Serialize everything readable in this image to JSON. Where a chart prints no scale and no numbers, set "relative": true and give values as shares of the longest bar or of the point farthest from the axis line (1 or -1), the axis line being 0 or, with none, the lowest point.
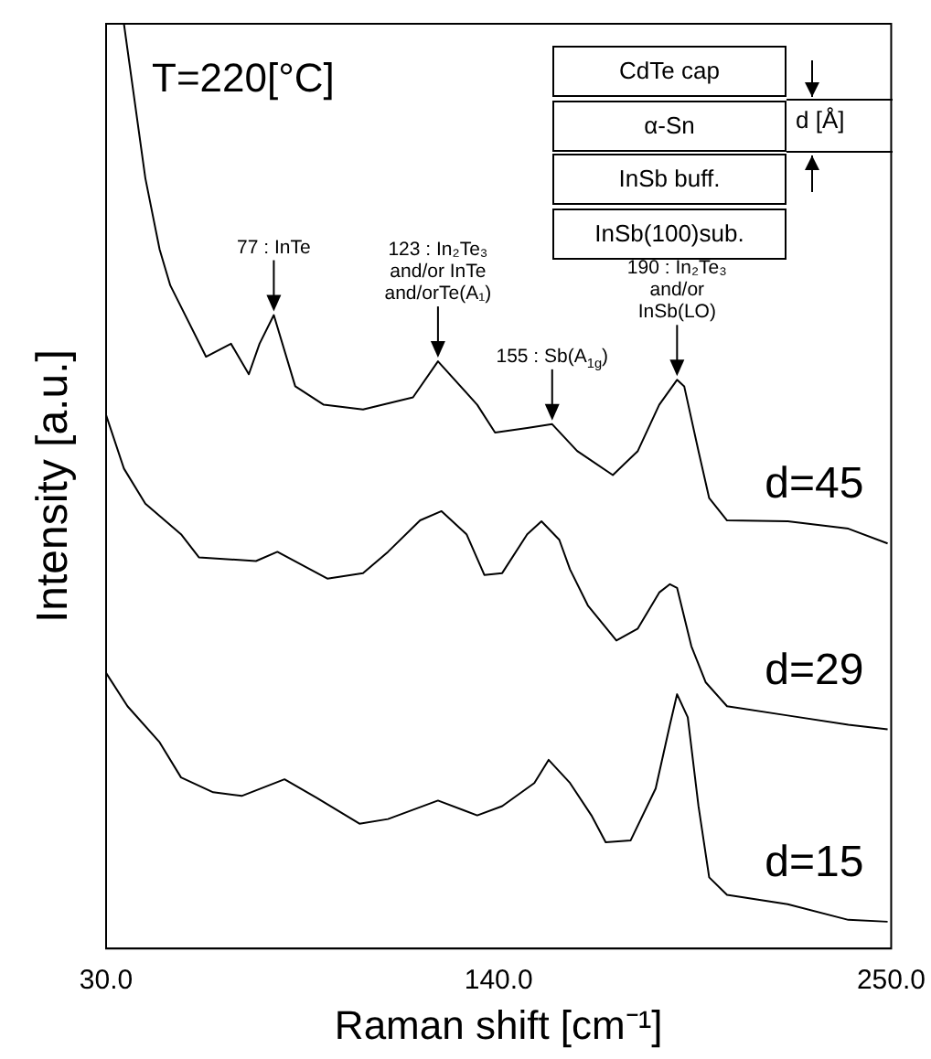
{
  "chart_data": {
    "type": "line",
    "relative": true,
    "xlabel": "Raman shift [cm⁻¹]",
    "ylabel": "Intensity [a.u.]",
    "xlim": [
      30,
      250
    ],
    "xticks": [
      {
        "value": 30,
        "label": "30.0"
      },
      {
        "value": 140,
        "label": "140.0"
      },
      {
        "value": 250,
        "label": "250.0"
      }
    ],
    "grid": false,
    "legend": false,
    "marker": "none",
    "line_style": "solid",
    "series": [
      {
        "name": "d=45",
        "color": "#000000",
        "x": [
          35,
          41,
          45,
          48,
          58,
          65,
          70,
          73,
          77,
          83,
          91,
          102,
          116,
          123,
          134,
          139,
          148,
          155,
          162,
          172,
          179,
          185,
          190,
          192,
          196,
          199,
          204,
          221,
          238,
          249
        ],
        "values": [
          1.0,
          0.833,
          0.756,
          0.717,
          0.64,
          0.654,
          0.621,
          0.654,
          0.685,
          0.608,
          0.588,
          0.583,
          0.596,
          0.635,
          0.588,
          0.558,
          0.563,
          0.567,
          0.538,
          0.512,
          0.538,
          0.588,
          0.615,
          0.608,
          0.538,
          0.487,
          0.463,
          0.462,
          0.454,
          0.438
        ]
      },
      {
        "name": "d=29",
        "color": "#000000",
        "x": [
          30,
          35,
          41,
          51,
          56,
          72,
          78,
          92,
          102,
          109,
          118,
          124,
          131,
          136,
          141,
          148,
          152,
          157,
          160,
          165,
          173,
          179,
          185,
          188,
          190,
          194,
          198,
          204,
          221,
          238,
          249
        ],
        "values": [
          0.577,
          0.519,
          0.481,
          0.448,
          0.423,
          0.419,
          0.429,
          0.4,
          0.406,
          0.429,
          0.463,
          0.473,
          0.448,
          0.404,
          0.406,
          0.448,
          0.462,
          0.442,
          0.41,
          0.371,
          0.333,
          0.346,
          0.385,
          0.394,
          0.39,
          0.327,
          0.288,
          0.262,
          0.252,
          0.242,
          0.237
        ]
      },
      {
        "name": "d=15",
        "color": "#000000",
        "x": [
          30,
          36,
          45,
          51,
          60,
          68,
          80,
          89,
          101,
          109,
          123,
          134,
          141,
          150,
          154,
          160,
          166,
          170,
          177,
          184,
          188,
          190,
          193,
          196,
          199,
          204,
          221,
          238,
          249
        ],
        "values": [
          0.298,
          0.262,
          0.223,
          0.185,
          0.169,
          0.165,
          0.183,
          0.163,
          0.135,
          0.14,
          0.16,
          0.144,
          0.154,
          0.179,
          0.204,
          0.179,
          0.144,
          0.115,
          0.117,
          0.173,
          0.242,
          0.275,
          0.25,
          0.154,
          0.077,
          0.058,
          0.048,
          0.031,
          0.029
        ]
      }
    ],
    "annotations": [
      "T=220[°C]",
      "CdTe cap",
      "α-Sn",
      "InSb buff.",
      "InSb(100)sub.",
      "d [Å]",
      {
        "text": "77 : InTe",
        "x": 77,
        "y": 0.685
      },
      {
        "text": "123 : In₂Te₃\nand/or InTe\nand/orTe(A₁)",
        "x": 123,
        "y": 0.635
      },
      {
        "text": "155 : Sb(A$_{1g}$)",
        "x": 155,
        "y": 0.567
      },
      {
        "text": "190 : In₂Te₃\nand/or\nInSb(LO)",
        "x": 190,
        "y": 0.615
      }
    ]
  }
}
